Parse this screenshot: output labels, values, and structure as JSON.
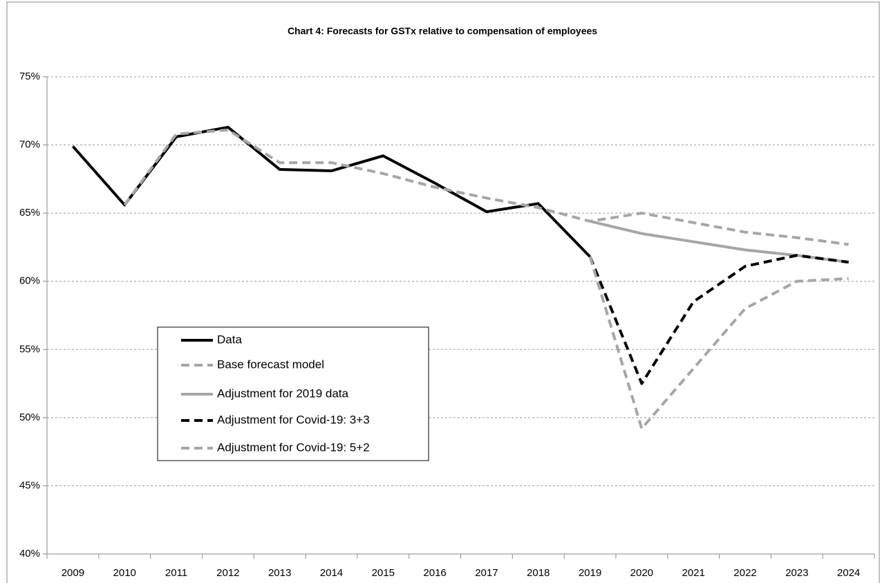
{
  "chart_data": {
    "type": "line",
    "title": "Chart 4: Forecasts for GSTx relative to compensation of employees",
    "categories": [
      "2009",
      "2010",
      "2011",
      "2012",
      "2013",
      "2014",
      "2015",
      "2016",
      "2017",
      "2018",
      "2019",
      "2020",
      "2021",
      "2022",
      "2023",
      "2024"
    ],
    "series": [
      {
        "name": "Data",
        "color": "#000000",
        "dashed": false,
        "values": [
          69.9,
          65.6,
          70.6,
          71.3,
          68.2,
          68.1,
          69.2,
          67.2,
          65.1,
          65.7,
          61.8,
          null,
          null,
          null,
          null,
          null
        ]
      },
      {
        "name": "Base forecast model",
        "color": "#a6a6a6",
        "dashed": true,
        "values": [
          null,
          65.6,
          70.8,
          71.1,
          68.7,
          68.7,
          67.9,
          66.9,
          66.1,
          65.4,
          64.4,
          65.0,
          64.3,
          63.6,
          63.2,
          62.7
        ]
      },
      {
        "name": "Adjustment for 2019 data",
        "color": "#a6a6a6",
        "dashed": false,
        "values": [
          null,
          null,
          null,
          null,
          null,
          null,
          null,
          null,
          null,
          null,
          64.4,
          63.5,
          62.9,
          62.3,
          61.9,
          61.4
        ]
      },
      {
        "name": "Adjustment for Covid-19: 3+3",
        "color": "#000000",
        "dashed": true,
        "values": [
          null,
          null,
          null,
          null,
          null,
          null,
          null,
          null,
          null,
          null,
          61.8,
          52.5,
          58.5,
          61.1,
          61.9,
          61.4
        ]
      },
      {
        "name": "Adjustment for Covid-19: 5+2",
        "color": "#a6a6a6",
        "dashed": true,
        "values": [
          null,
          null,
          null,
          null,
          null,
          null,
          null,
          null,
          null,
          null,
          61.8,
          49.2,
          53.6,
          58.0,
          60.0,
          60.2
        ]
      }
    ],
    "ylim": [
      40,
      75
    ],
    "yticks": [
      {
        "value": 40,
        "label": "40%"
      },
      {
        "value": 45,
        "label": "45%"
      },
      {
        "value": 50,
        "label": "50%"
      },
      {
        "value": 55,
        "label": "55%"
      },
      {
        "value": 60,
        "label": "60%"
      },
      {
        "value": 65,
        "label": "65%"
      },
      {
        "value": 70,
        "label": "70%"
      },
      {
        "value": 75,
        "label": "75%"
      }
    ],
    "grid": true
  }
}
